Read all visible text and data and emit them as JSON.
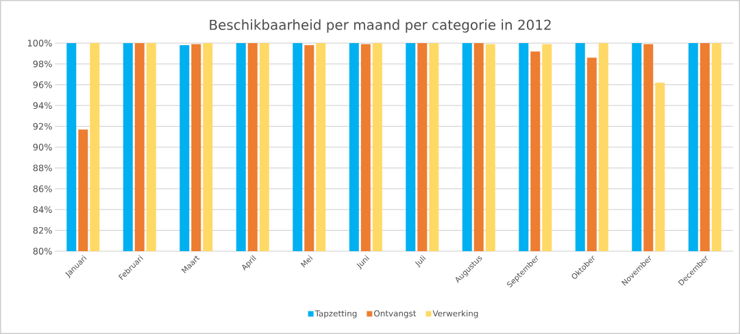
{
  "chart_data": {
    "type": "bar",
    "title": "Beschikbaarheid per maand per categorie in 2012",
    "categories": [
      "Januari",
      "Februari",
      "Maart",
      "April",
      "Mei",
      "Juni",
      "Juli",
      "Augustus",
      "September",
      "Oktober",
      "November",
      "December"
    ],
    "series": [
      {
        "name": "Tapzetting",
        "color": "#00b0f0",
        "values": [
          100,
          100,
          99.8,
          100,
          100,
          100,
          100,
          100,
          100,
          100,
          100,
          100
        ]
      },
      {
        "name": "Ontvangst",
        "color": "#ed7d31",
        "values": [
          91.7,
          100,
          99.9,
          100,
          99.8,
          99.9,
          100,
          100,
          99.2,
          98.6,
          99.9,
          100
        ]
      },
      {
        "name": "Verwerking",
        "color": "#ffd966",
        "values": [
          100,
          100,
          100,
          100,
          100,
          100,
          100,
          99.9,
          99.9,
          100,
          96.2,
          100
        ]
      }
    ],
    "ylim": [
      80,
      100
    ],
    "yticks": [
      {
        "value": 80,
        "label": "80%"
      },
      {
        "value": 82,
        "label": "82%"
      },
      {
        "value": 84,
        "label": "84%"
      },
      {
        "value": 86,
        "label": "86%"
      },
      {
        "value": 88,
        "label": "88%"
      },
      {
        "value": 90,
        "label": "90%"
      },
      {
        "value": 92,
        "label": "92%"
      },
      {
        "value": 94,
        "label": "94%"
      },
      {
        "value": 96,
        "label": "96%"
      },
      {
        "value": 98,
        "label": "98%"
      },
      {
        "value": 100,
        "label": "100%"
      }
    ],
    "grid": "y",
    "legend": "bottom"
  }
}
